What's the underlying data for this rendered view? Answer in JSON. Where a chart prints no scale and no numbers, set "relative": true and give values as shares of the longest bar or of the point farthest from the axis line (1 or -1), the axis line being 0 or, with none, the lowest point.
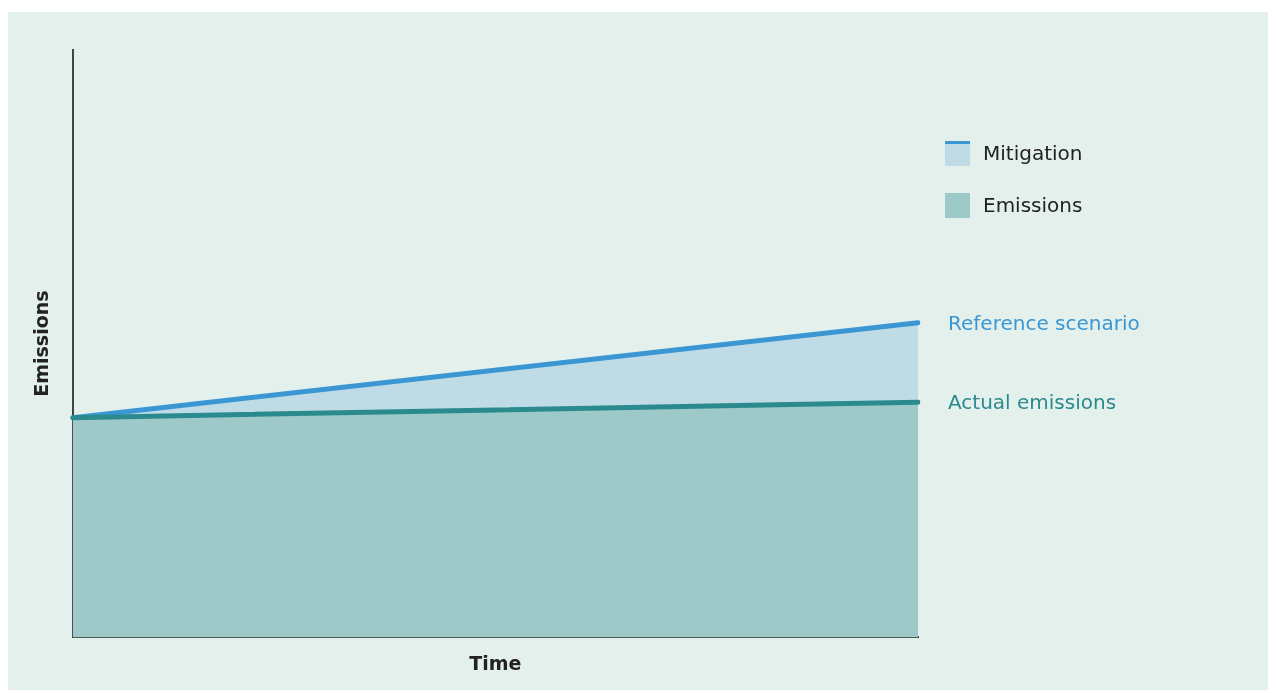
{
  "chart_data": {
    "type": "area",
    "relative": true,
    "xlabel": "Time",
    "ylabel": "Emissions",
    "categories": [
      null,
      null
    ],
    "legend": "right",
    "tick_labels": false,
    "series": [
      {
        "name": "Emissions",
        "color": "#2a8a8e",
        "values": [
          0.698,
          0.747
        ]
      },
      {
        "name": "Mitigation",
        "color": "#3a97d4",
        "values": [
          0.698,
          1
        ]
      }
    ],
    "annotations": [
      "Reference scenario",
      "Actual emissions"
    ]
  }
}
